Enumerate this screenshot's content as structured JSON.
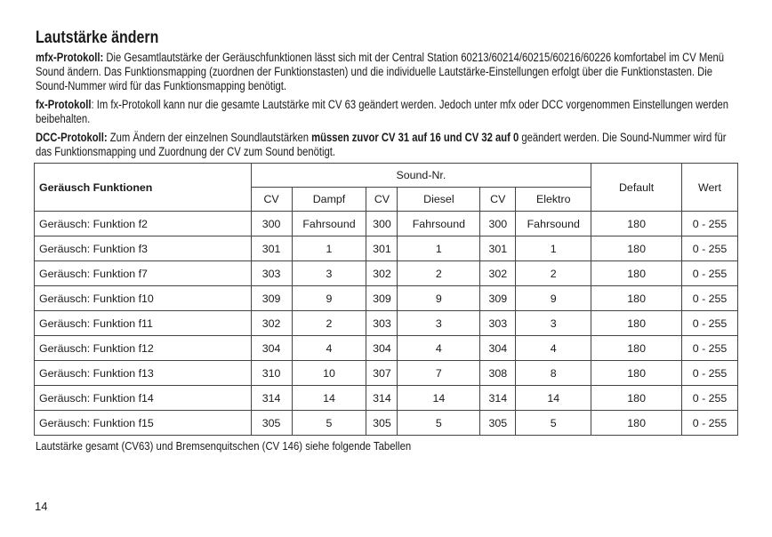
{
  "title": "Lautstärke ändern",
  "mfx": {
    "label": "mfx-Protokoll:",
    "text": " Die Gesamtlautstärke der Geräuschfunktionen lässt sich mit der Central Station 60213/60214/60215/60216/60226 komfortabel im CV Menü Sound ändern. Das Funktionsmapping (zuordnen der Funktionstasten) und die individuelle Lautstärke-Einstellungen erfolgt über die Funktionstasten. Die Sound-Nummer wird für das Funktionsmapping benötigt."
  },
  "fx": {
    "label": "fx-Protokoll",
    "text": ": Im fx-Protokoll kann nur die gesamte Lautstärke mit CV 63 geändert werden. Jedoch unter mfx oder DCC vorgenommen Einstellungen werden beibehalten."
  },
  "dcc": {
    "label": "DCC-Protokoll:",
    "text1": " Zum Ändern der einzelnen Soundlautstärken ",
    "bold": "müssen zuvor CV 31 auf 16 und CV 32 auf 0",
    "text2": " geändert werden. Die Sound-Nummer wird für das Funktionsmapping und Zuordnung der CV zum Sound benötigt."
  },
  "table": {
    "header": {
      "name": "Geräusch Funktionen",
      "group": "Sound-Nr.",
      "default": "Default",
      "wert": "Wert",
      "sub": [
        "CV",
        "Dampf",
        "CV",
        "Diesel",
        "CV",
        "Elektro"
      ]
    },
    "rows": [
      [
        "Geräusch: Funktion f2",
        "300",
        "Fahrsound",
        "300",
        "Fahrsound",
        "300",
        "Fahrsound",
        "180",
        "0 - 255"
      ],
      [
        "Geräusch: Funktion f3",
        "301",
        "1",
        "301",
        "1",
        "301",
        "1",
        "180",
        "0 - 255"
      ],
      [
        "Geräusch: Funktion f7",
        "303",
        "3",
        "302",
        "2",
        "302",
        "2",
        "180",
        "0 - 255"
      ],
      [
        "Geräusch: Funktion f10",
        "309",
        "9",
        "309",
        "9",
        "309",
        "9",
        "180",
        "0 - 255"
      ],
      [
        "Geräusch: Funktion f11",
        "302",
        "2",
        "303",
        "3",
        "303",
        "3",
        "180",
        "0 - 255"
      ],
      [
        "Geräusch: Funktion f12",
        "304",
        "4",
        "304",
        "4",
        "304",
        "4",
        "180",
        "0 - 255"
      ],
      [
        "Geräusch: Funktion f13",
        "310",
        "10",
        "307",
        "7",
        "308",
        "8",
        "180",
        "0 - 255"
      ],
      [
        "Geräusch: Funktion f14",
        "314",
        "14",
        "314",
        "14",
        "314",
        "14",
        "180",
        "0 - 255"
      ],
      [
        "Geräusch: Funktion f15",
        "305",
        "5",
        "305",
        "5",
        "305",
        "5",
        "180",
        "0 - 255"
      ]
    ]
  },
  "footnote": "Lautstärke gesamt (CV63) und Bremsenquitschen (CV 146) siehe folgende Tabellen",
  "page_number": "14"
}
